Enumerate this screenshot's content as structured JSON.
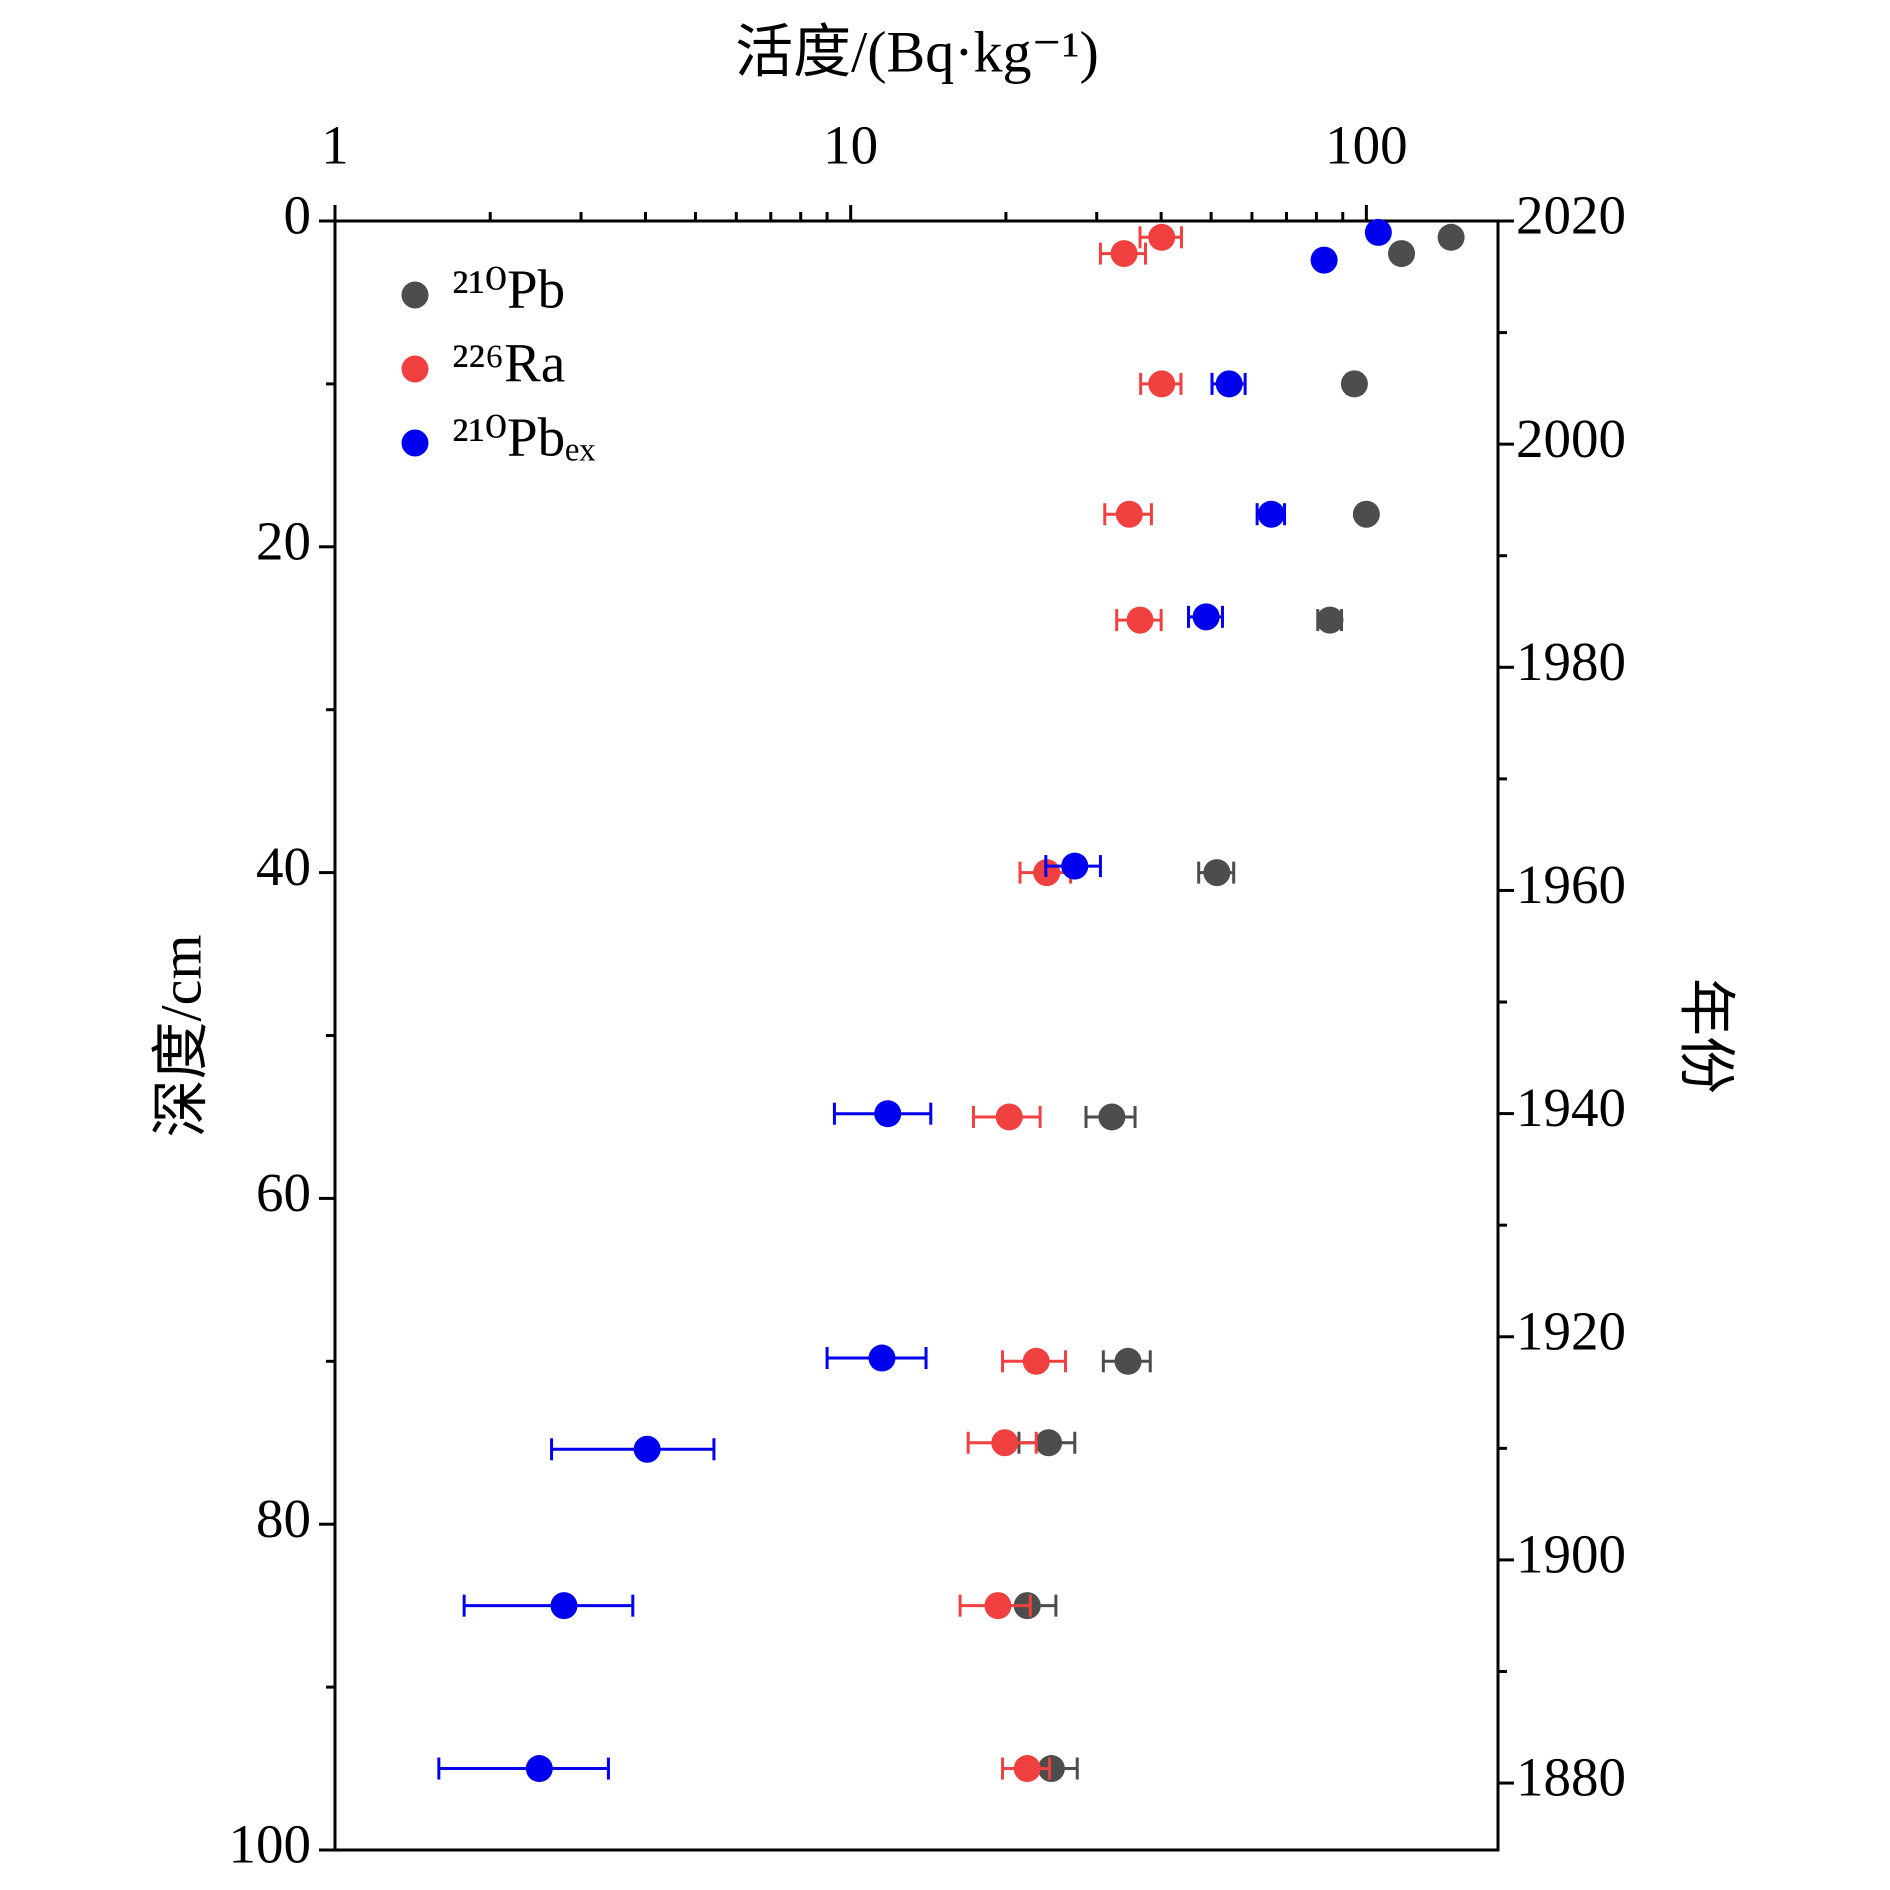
{
  "chart_data": {
    "type": "scatter",
    "title": "活度/(Bq·kg⁻¹)",
    "y_label": "深度/cm",
    "y2_label": "年份",
    "xscale": "log",
    "xlim": [
      1,
      180
    ],
    "xticks": [
      1,
      10,
      100
    ],
    "xminorticks": [
      2,
      3,
      4,
      5,
      6,
      7,
      8,
      9,
      20,
      30,
      40,
      50,
      60,
      70,
      80,
      90
    ],
    "ylim": [
      0,
      100
    ],
    "yticks": [
      0,
      20,
      40,
      60,
      80,
      100
    ],
    "yminorticks": [
      10,
      30,
      50,
      70,
      90
    ],
    "y_inverted": true,
    "y2lim": [
      2020,
      1874
    ],
    "y2ticks": [
      2020,
      2000,
      1980,
      1960,
      1940,
      1920,
      1900,
      1880
    ],
    "y2minorticks": [
      2010,
      1990,
      1970,
      1950,
      1930,
      1910,
      1890
    ],
    "legend": "upper left",
    "series": [
      {
        "name": "²¹⁰Pb",
        "color": "#4d4d4d",
        "x": [
          146,
          117,
          94.8,
          100,
          85,
          51.3,
          32.1,
          34.5,
          24.2,
          22.0,
          24.5
        ],
        "y": [
          1,
          2,
          10,
          18,
          24.5,
          40,
          55,
          70,
          75,
          85,
          95
        ],
        "xerr": [
          3,
          3,
          3,
          3,
          4.5,
          4,
          3.5,
          3.6,
          3,
          3,
          3
        ]
      },
      {
        "name": "²²⁶Ra",
        "color": "#f04040",
        "x": [
          40.1,
          33.9,
          40.1,
          34.7,
          36.4,
          24.0,
          20.3,
          22.9,
          19.9,
          19.3,
          22.0
        ],
        "y": [
          1,
          2,
          10,
          18,
          24.5,
          40,
          55,
          70,
          75,
          85,
          95
        ],
        "xerr": [
          3.7,
          3.4,
          3.6,
          3.6,
          3.6,
          2.7,
          3,
          3.2,
          3,
          3,
          2.3
        ]
      },
      {
        "name": "²¹⁰Pbₑₓ",
        "color": "#0000ee",
        "x": [
          105.5,
          82.8,
          54.2,
          65.4,
          48.9,
          27.2,
          11.8,
          11.5,
          4.03,
          2.78,
          2.49
        ],
        "y": [
          0.7,
          2.4,
          10,
          18,
          24.3,
          39.6,
          54.8,
          69.8,
          75.4,
          85,
          95
        ],
        "xerr": [
          2,
          2.5,
          4,
          4,
          3.7,
          3.3,
          2.5,
          2.5,
          1.4,
          1.0,
          0.9
        ]
      }
    ]
  }
}
